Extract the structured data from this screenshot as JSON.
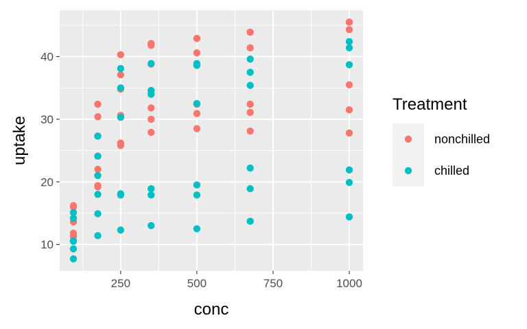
{
  "chart_data": {
    "type": "scatter",
    "xlabel": "conc",
    "ylabel": "uptake",
    "xlim": [
      50,
      1045
    ],
    "ylim": [
      5.8,
      47.4
    ],
    "x_ticks": [
      250,
      500,
      750,
      1000
    ],
    "y_ticks": [
      10,
      20,
      30,
      40
    ],
    "x_tick_labels": [
      "250",
      "500",
      "750",
      "1000"
    ],
    "y_tick_labels": [
      "10",
      "20",
      "30",
      "40"
    ],
    "grid": true,
    "legend": {
      "title": "Treatment",
      "position": "right"
    },
    "series": [
      {
        "name": "nonchilled",
        "color": "#F8766D",
        "x": [
          95,
          95,
          95,
          95,
          95,
          95,
          175,
          175,
          175,
          175,
          175,
          175,
          250,
          250,
          250,
          250,
          250,
          250,
          350,
          350,
          350,
          350,
          350,
          350,
          500,
          500,
          500,
          500,
          500,
          500,
          675,
          675,
          675,
          675,
          675,
          675,
          1000,
          1000,
          1000,
          1000,
          1000,
          1000
        ],
        "y": [
          16.0,
          13.6,
          16.2,
          11.3,
          11.8,
          10.6,
          30.4,
          27.3,
          32.4,
          19.4,
          22.0,
          19.2,
          34.8,
          37.1,
          40.3,
          25.8,
          30.6,
          26.2,
          38.8,
          41.8,
          42.1,
          27.9,
          31.8,
          30.0,
          42.9,
          40.6,
          42.9,
          28.5,
          32.4,
          30.9,
          43.9,
          41.4,
          43.9,
          28.1,
          31.1,
          32.4,
          45.5,
          44.3,
          45.5,
          27.8,
          31.5,
          35.5
        ]
      },
      {
        "name": "chilled",
        "color": "#00BFC4",
        "x": [
          95,
          95,
          95,
          95,
          95,
          95,
          175,
          175,
          175,
          175,
          175,
          175,
          250,
          250,
          250,
          250,
          250,
          250,
          350,
          350,
          350,
          350,
          350,
          350,
          500,
          500,
          500,
          500,
          500,
          500,
          675,
          675,
          675,
          675,
          675,
          675,
          1000,
          1000,
          1000,
          1000,
          1000,
          1000
        ],
        "y": [
          14.2,
          15.1,
          10.6,
          10.5,
          9.3,
          7.7,
          24.1,
          21.0,
          27.3,
          14.9,
          11.4,
          18.0,
          30.3,
          38.1,
          35.0,
          18.1,
          12.3,
          17.9,
          34.6,
          34.0,
          38.9,
          18.9,
          13.0,
          17.9,
          32.5,
          38.9,
          38.6,
          19.5,
          12.5,
          17.9,
          35.4,
          39.6,
          37.5,
          22.2,
          13.7,
          18.9,
          38.7,
          41.4,
          42.4,
          21.9,
          14.4,
          19.9
        ]
      }
    ]
  }
}
